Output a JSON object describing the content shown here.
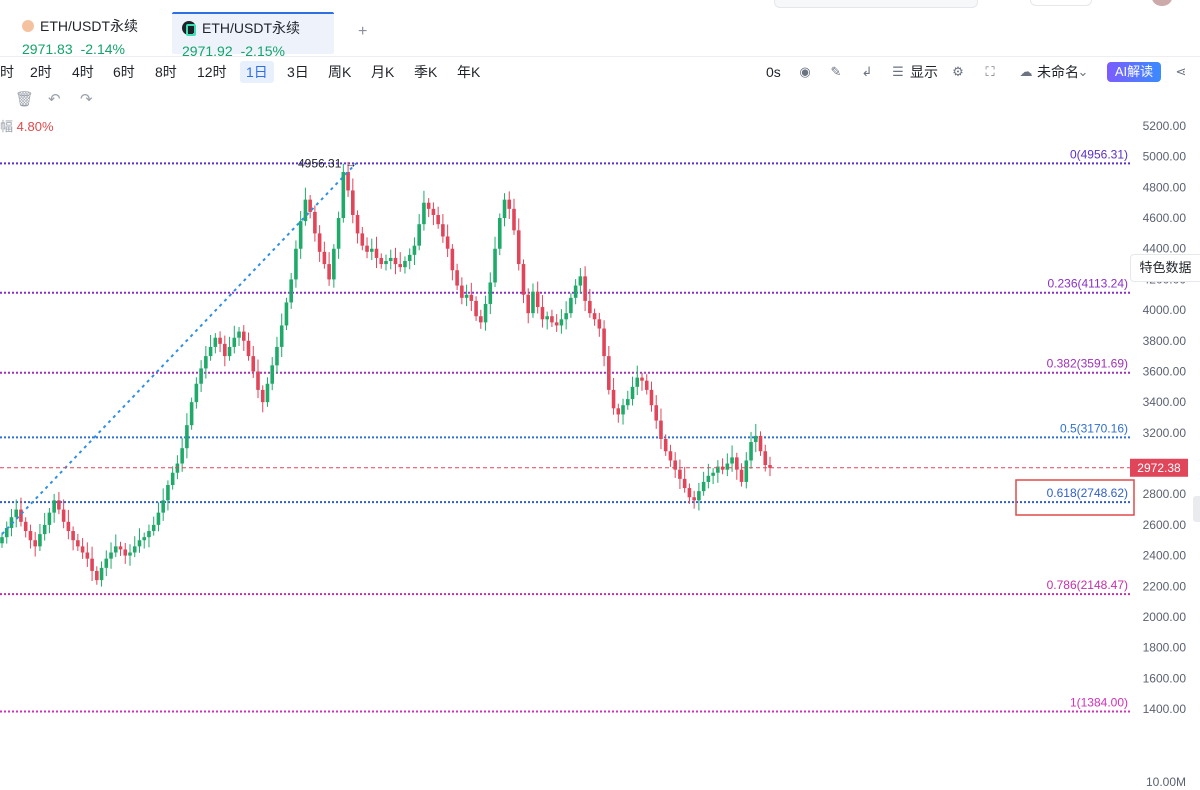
{
  "tabs": [
    {
      "title": "ETH/USDT永续",
      "price": "2971.83",
      "change": "-2.14%",
      "active": false
    },
    {
      "title": "ETH/USDT永续",
      "price": "2971.92",
      "change": "-2.15%",
      "active": true
    }
  ],
  "tab_add": "+",
  "intervals": [
    "时",
    "2时",
    "4时",
    "6时",
    "8时",
    "12时",
    "1日",
    "3日",
    "周K",
    "月K",
    "季K",
    "年K"
  ],
  "active_interval": "1日",
  "toolbar": {
    "countdown": "0s",
    "display_label": "显示",
    "layout_name": "未命名",
    "ai_label": "AI解读"
  },
  "change_prefix": "幅",
  "change_value": "4.80%",
  "side_tab": "特色数据",
  "chart_data": {
    "type": "candlestick",
    "y_axis_ticks": [
      "5200.00",
      "5000.00",
      "4800.00",
      "4600.00",
      "4400.00",
      "4200.00",
      "4000.00",
      "3800.00",
      "3600.00",
      "3400.00",
      "3200.00",
      "3000.00",
      "2800.00",
      "2600.00",
      "2400.00",
      "2200.00",
      "2000.00",
      "1800.00",
      "1600.00",
      "1400.00"
    ],
    "y_axis_bottom": "10.00M",
    "ylim": [
      1200,
      5380
    ],
    "current_price": "2972.38",
    "peak_label": "4956.31",
    "fib_levels": [
      {
        "label": "0(4956.31)",
        "value": 4956.31,
        "color": "#5b2fc9"
      },
      {
        "label": "0.236(4113.24)",
        "value": 4113.24,
        "color": "#8a2fc9"
      },
      {
        "label": "0.382(3591.69)",
        "value": 3591.69,
        "color": "#a02fb9"
      },
      {
        "label": "0.5(3170.16)",
        "value": 3170.16,
        "color": "#2f6fd4"
      },
      {
        "label": "0.618(2748.62)",
        "value": 2748.62,
        "color": "#2f5fc4"
      },
      {
        "label": "0.786(2148.47)",
        "value": 2148.47,
        "color": "#c42fa9"
      },
      {
        "label": "1(1384.00)",
        "value": 1384.0,
        "color": "#d42fb9"
      }
    ],
    "closes": [
      2520,
      2580,
      2650,
      2700,
      2620,
      2560,
      2500,
      2460,
      2540,
      2600,
      2680,
      2760,
      2700,
      2620,
      2560,
      2500,
      2460,
      2420,
      2380,
      2300,
      2240,
      2320,
      2380,
      2420,
      2460,
      2440,
      2400,
      2420,
      2460,
      2500,
      2520,
      2560,
      2600,
      2680,
      2760,
      2860,
      2940,
      3000,
      3100,
      3250,
      3400,
      3520,
      3620,
      3700,
      3760,
      3820,
      3780,
      3700,
      3760,
      3820,
      3860,
      3800,
      3700,
      3600,
      3480,
      3400,
      3520,
      3640,
      3760,
      3900,
      4050,
      4200,
      4400,
      4580,
      4720,
      4640,
      4500,
      4380,
      4300,
      4200,
      4400,
      4600,
      4900,
      4780,
      4620,
      4500,
      4420,
      4380,
      4400,
      4340,
      4300,
      4320,
      4340,
      4300,
      4280,
      4320,
      4360,
      4420,
      4560,
      4700,
      4660,
      4620,
      4560,
      4480,
      4400,
      4260,
      4160,
      4080,
      4100,
      4060,
      3960,
      3920,
      4040,
      4180,
      4400,
      4600,
      4720,
      4660,
      4520,
      4300,
      4100,
      3980,
      4120,
      4020,
      3940,
      3960,
      3920,
      3900,
      3940,
      3980,
      4080,
      4160,
      4220,
      4060,
      3980,
      3940,
      3880,
      3700,
      3480,
      3360,
      3320,
      3380,
      3420,
      3500,
      3560,
      3540,
      3480,
      3380,
      3280,
      3160,
      3080,
      3020,
      2960,
      2900,
      2840,
      2780,
      2760,
      2820,
      2880,
      2920,
      2940,
      2980,
      2960,
      3000,
      3040,
      2960,
      2880,
      3020,
      3140,
      3180,
      3080,
      2990,
      2972
    ],
    "volume_label": "10.00M"
  }
}
